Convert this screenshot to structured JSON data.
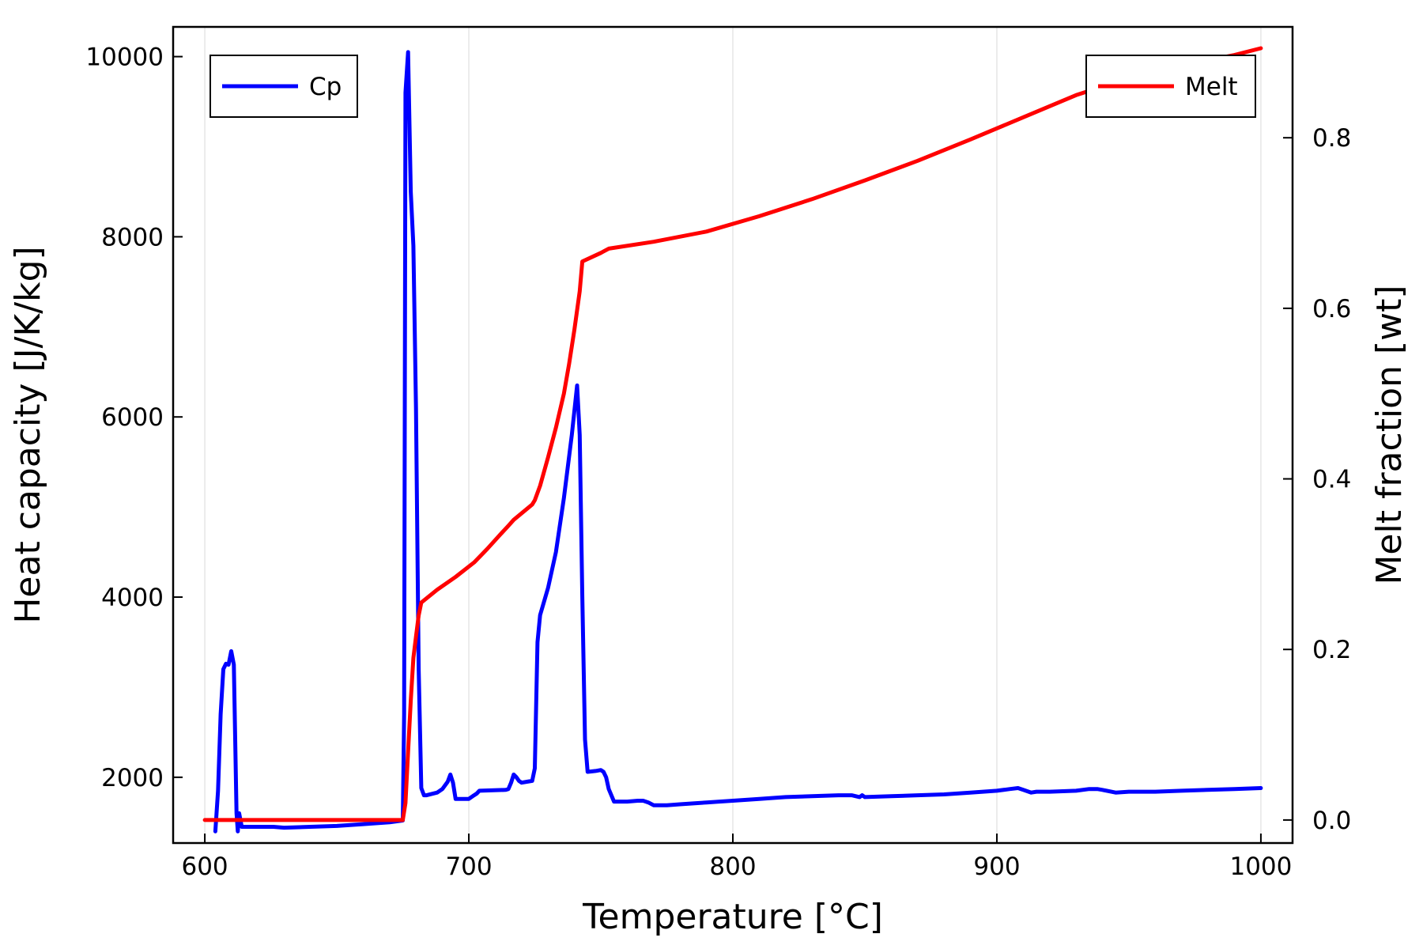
{
  "chart_data": {
    "type": "line",
    "title": "",
    "xlabel": "Temperature [°C]",
    "ylabel_left": "Heat capacity [J/K/kg]",
    "ylabel_right": "Melt fraction [wt]",
    "xlim": [
      588,
      1012
    ],
    "ylim_left": [
      1270,
      10330
    ],
    "ylim_right": [
      -0.027,
      0.93
    ],
    "xticks": [
      600,
      700,
      800,
      900,
      1000
    ],
    "xtick_labels": [
      "600",
      "700",
      "800",
      "900",
      "1000"
    ],
    "yticks_left": [
      2000,
      4000,
      6000,
      8000,
      10000
    ],
    "ytick_labels_left": [
      "2000",
      "4000",
      "6000",
      "8000",
      "10000"
    ],
    "yticks_right": [
      0.0,
      0.2,
      0.4,
      0.6,
      0.8
    ],
    "ytick_labels_right": [
      "0.0",
      "0.2",
      "0.4",
      "0.6",
      "0.8"
    ],
    "grid": "vertical",
    "series": [
      {
        "name": "Cp",
        "axis": "left",
        "color": "#0000ff",
        "legend_position": "top-left",
        "x": [
          604,
          605,
          606,
          607,
          608,
          609,
          610,
          611,
          612,
          612.5,
          613,
          614,
          616,
          626,
          630,
          650,
          660,
          670,
          675,
          675.5,
          676,
          677,
          678,
          679,
          680,
          681,
          682,
          683,
          684,
          688,
          690,
          692,
          693,
          694,
          695,
          700,
          702,
          703,
          704,
          714,
          715,
          716,
          717,
          718,
          719,
          720,
          722,
          724,
          725,
          726,
          727,
          730,
          733,
          736,
          739,
          741,
          742,
          743,
          744,
          745,
          748,
          750,
          751,
          752,
          753,
          755,
          758,
          760,
          764,
          766,
          768,
          770,
          775,
          780,
          785,
          790,
          800,
          810,
          820,
          830,
          840,
          845,
          848,
          849,
          850,
          860,
          870,
          880,
          890,
          900,
          905,
          908,
          910,
          913,
          915,
          920,
          930,
          935,
          938,
          940,
          945,
          950,
          960,
          970,
          980,
          990,
          1000
        ],
        "y": [
          1400,
          1850,
          2700,
          3200,
          3260,
          3250,
          3400,
          3250,
          1600,
          1400,
          1600,
          1450,
          1450,
          1450,
          1440,
          1460,
          1480,
          1500,
          1520,
          2700,
          9600,
          10050,
          8500,
          7900,
          6100,
          3200,
          1880,
          1800,
          1800,
          1830,
          1870,
          1950,
          2030,
          1940,
          1760,
          1760,
          1800,
          1820,
          1850,
          1860,
          1870,
          1940,
          2030,
          2000,
          1960,
          1940,
          1950,
          1960,
          2100,
          3500,
          3800,
          4100,
          4500,
          5100,
          5800,
          6350,
          5800,
          4000,
          2420,
          2060,
          2070,
          2080,
          2060,
          2000,
          1870,
          1730,
          1730,
          1730,
          1740,
          1740,
          1720,
          1690,
          1690,
          1700,
          1710,
          1720,
          1740,
          1760,
          1780,
          1790,
          1800,
          1800,
          1780,
          1800,
          1780,
          1790,
          1800,
          1810,
          1830,
          1850,
          1870,
          1880,
          1860,
          1830,
          1840,
          1840,
          1850,
          1870,
          1870,
          1860,
          1830,
          1840,
          1840,
          1850,
          1860,
          1870,
          1880
        ]
      },
      {
        "name": "Melt",
        "axis": "right",
        "color": "#ff0000",
        "legend_position": "top-right",
        "x": [
          600,
          675,
          676,
          677,
          678,
          679,
          680,
          681,
          682,
          688,
          695,
          702,
          707,
          712,
          715,
          717,
          724,
          725,
          727,
          730,
          733,
          736,
          738,
          740,
          742,
          743,
          750,
          753,
          770,
          790,
          810,
          830,
          850,
          870,
          890,
          910,
          930,
          950,
          970,
          990,
          1000
        ],
        "y": [
          0.0,
          0.0,
          0.02,
          0.08,
          0.14,
          0.19,
          0.215,
          0.24,
          0.255,
          0.27,
          0.285,
          0.302,
          0.318,
          0.335,
          0.345,
          0.352,
          0.37,
          0.375,
          0.392,
          0.425,
          0.46,
          0.5,
          0.535,
          0.575,
          0.62,
          0.655,
          0.665,
          0.67,
          0.678,
          0.69,
          0.708,
          0.728,
          0.75,
          0.773,
          0.798,
          0.824,
          0.85,
          0.87,
          0.885,
          0.897,
          0.905
        ]
      }
    ]
  },
  "colors": {
    "axis": "#000000",
    "grid": "#e6e6e6",
    "background": "#ffffff"
  }
}
